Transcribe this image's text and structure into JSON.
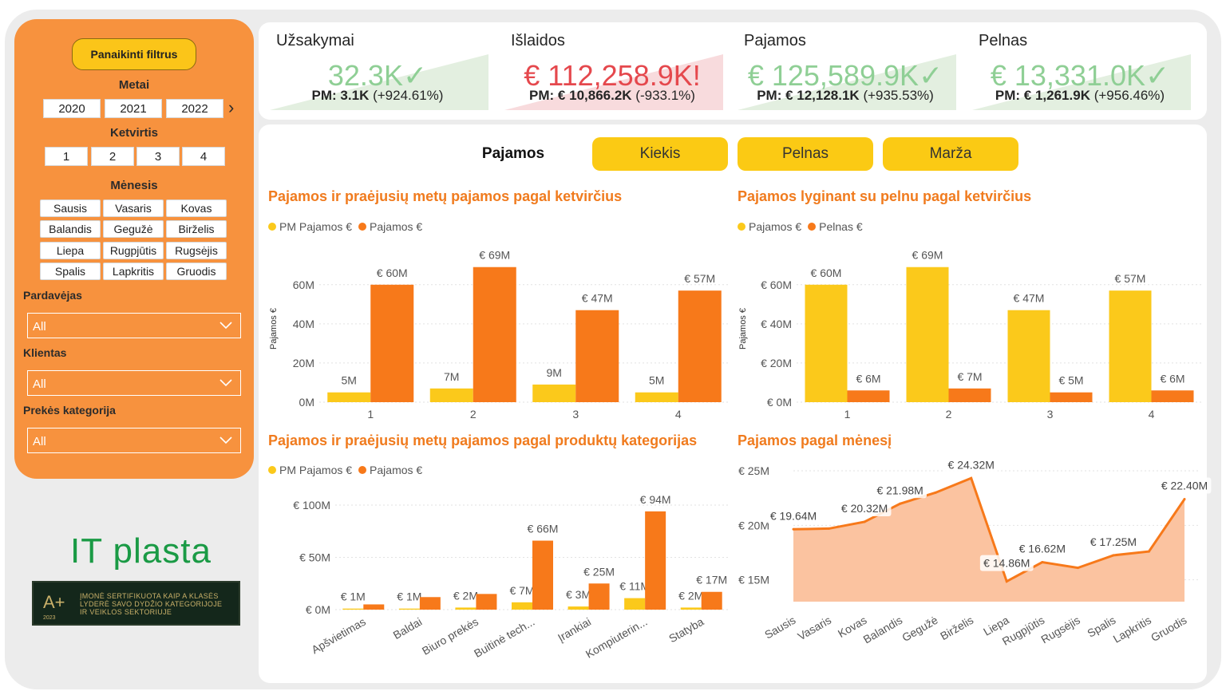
{
  "sidebar": {
    "clear_label": "Panaikinti filtrus",
    "year_title": "Metai",
    "years": [
      "2020",
      "2021",
      "2022"
    ],
    "quarter_title": "Ketvirtis",
    "quarters": [
      "1",
      "2",
      "3",
      "4"
    ],
    "month_title": "Mėnesis",
    "months": [
      "Sausis",
      "Vasaris",
      "Kovas",
      "Balandis",
      "Gegužė",
      "Birželis",
      "Liepa",
      "Rugpjūtis",
      "Rugsėjis",
      "Spalis",
      "Lapkritis",
      "Gruodis"
    ],
    "seller_label": "Pardavėjas",
    "seller_value": "All",
    "client_label": "Klientas",
    "client_value": "All",
    "category_label": "Prekės kategorija",
    "category_value": "All"
  },
  "logo": {
    "text": "IT plasta",
    "cert_text_1": "ĮMONĖ SERTIFIKUOTA KAIP A KLASĖS",
    "cert_text_2": "LYDERĖ SAVO DYDŽIO KATEGORIJOJE",
    "cert_text_3": "IR VEIKLOS SEKTORIUJE",
    "cert_mark": "A+",
    "cert_year": "2023"
  },
  "kpis": [
    {
      "title": "Užsakymai",
      "value": "32.3K",
      "sign": "✓",
      "status": "good",
      "pm_label": "PM: 3.1K",
      "pm_change": "(+924.61%)"
    },
    {
      "title": "Išlaidos",
      "value": "€ 112,258.9K",
      "sign": "!",
      "status": "bad",
      "pm_label": "PM: € 10,866.2K",
      "pm_change": "(-933.1%)"
    },
    {
      "title": "Pajamos",
      "value": "€ 125,589.9K",
      "sign": "✓",
      "status": "good",
      "pm_label": "PM: € 12,128.1K",
      "pm_change": "(+935.53%)"
    },
    {
      "title": "Pelnas",
      "value": "€ 13,331.0K",
      "sign": "✓",
      "status": "good",
      "pm_label": "PM: € 1,261.9K",
      "pm_change": "(+956.46%)"
    }
  ],
  "colors": {
    "orange": "#f7791a",
    "yellow": "#fbc91b",
    "good": "#8fcf95",
    "bad": "#e5484d",
    "good_bg": "#e3efe0",
    "bad_bg": "#f8dbdd",
    "title": "#f07b1e"
  },
  "tabs": [
    "Pajamos",
    "Kiekis",
    "Pelnas",
    "Marža"
  ],
  "chart_data": [
    {
      "id": "c1",
      "type": "bar",
      "title": "Pajamos ir praėjusių metų pajamos pagal ketvirčius",
      "categories": [
        "1",
        "2",
        "3",
        "4"
      ],
      "series": [
        {
          "name": "PM Pajamos €",
          "values": [
            5,
            7,
            9,
            5
          ],
          "labels": [
            "5M",
            "7M",
            "9M",
            "5M"
          ]
        },
        {
          "name": "Pajamos €",
          "values": [
            60,
            69,
            47,
            57
          ],
          "labels": [
            "€ 60M",
            "€ 69M",
            "€ 47M",
            "€ 57M"
          ]
        }
      ],
      "ylabel": "Pajamos €",
      "ylim": [
        0,
        75
      ],
      "yticks": [
        0,
        20,
        40,
        60
      ],
      "ytick_labels": [
        "0M",
        "20M",
        "40M",
        "60M"
      ]
    },
    {
      "id": "c2",
      "type": "bar",
      "title": "Pajamos lyginant su pelnu pagal ketvirčius",
      "categories": [
        "1",
        "2",
        "3",
        "4"
      ],
      "series": [
        {
          "name": "Pajamos €",
          "values": [
            60,
            69,
            47,
            57
          ],
          "labels": [
            "€ 60M",
            "€ 69M",
            "€ 47M",
            "€ 57M"
          ]
        },
        {
          "name": "Pelnas €",
          "values": [
            6,
            7,
            5,
            6
          ],
          "labels": [
            "€ 6M",
            "€ 7M",
            "€ 5M",
            "€ 6M"
          ]
        }
      ],
      "ylabel": "Pajamos €",
      "ylim": [
        0,
        75
      ],
      "yticks": [
        0,
        20,
        40,
        60
      ],
      "ytick_labels": [
        "€ 0M",
        "€ 20M",
        "€ 40M",
        "€ 60M"
      ]
    },
    {
      "id": "c3",
      "type": "bar",
      "title": "Pajamos ir praėjusių metų pajamos pagal produktų kategorijas",
      "categories": [
        "Apšvietimas",
        "Baldai",
        "Biuro prekės",
        "Buitinė tech...",
        "Įrankiai",
        "Kompiuterin...",
        "Statyba"
      ],
      "series": [
        {
          "name": "PM Pajamos €",
          "values": [
            1,
            1,
            2,
            7,
            3,
            11,
            2
          ],
          "labels": [
            "€ 1M",
            "€ 1M",
            "€ 2M",
            "€ 7M",
            "€ 3M",
            "€ 11M",
            "€ 2M"
          ]
        },
        {
          "name": "Pajamos €",
          "values": [
            5,
            12,
            15,
            66,
            25,
            94,
            17
          ],
          "labels": [
            "",
            "",
            "",
            "€ 66M",
            "€ 25M",
            "€ 94M",
            "€ 17M"
          ]
        }
      ],
      "ylim": [
        0,
        100
      ],
      "yticks": [
        0,
        50,
        100
      ],
      "ytick_labels": [
        "€ 0M",
        "€ 50M",
        "€ 100M"
      ]
    },
    {
      "id": "c4",
      "type": "area",
      "title": "Pajamos pagal mėnesį",
      "categories": [
        "Sausis",
        "Vasaris",
        "Kovas",
        "Balandis",
        "Gegužė",
        "Birželis",
        "Liepa",
        "Rugpjūtis",
        "Rugsėjis",
        "Spalis",
        "Lapkritis",
        "Gruodis"
      ],
      "values": [
        19.64,
        19.7,
        20.32,
        21.98,
        23.0,
        24.32,
        14.86,
        16.62,
        16.1,
        17.25,
        17.6,
        22.4
      ],
      "labels": [
        "€ 19.64M",
        "",
        "€ 20.32M",
        "€ 21.98M",
        "",
        "€ 24.32M",
        "€ 14.86M",
        "€ 16.62M",
        "",
        "€ 17.25M",
        "",
        "€ 22.40M"
      ],
      "ylim": [
        13,
        25
      ],
      "yticks": [
        15,
        20,
        25
      ],
      "ytick_labels": [
        "€ 15M",
        "€ 20M",
        "€ 25M"
      ]
    }
  ]
}
